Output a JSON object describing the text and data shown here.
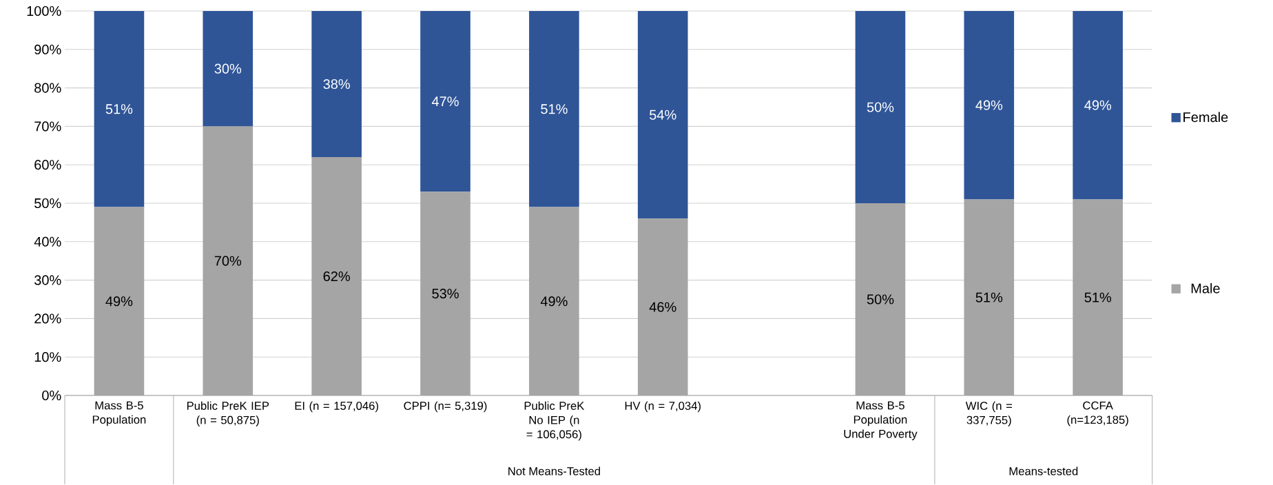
{
  "chart_data": {
    "type": "bar",
    "stacked": true,
    "categories": [
      "Mass B-5 Population",
      "Public PreK IEP (n = 50,875)",
      "EI (n = 157,046)",
      "CPPI (n= 5,319)",
      "Public PreK No IEP (n = 106,056)",
      "HV (n = 7,034)",
      null,
      "Mass B-5 Population Under Poverty",
      "WIC (n = 337,755)",
      "CCFA (n=123,185)"
    ],
    "series": [
      {
        "name": "Male",
        "color": "#a5a5a5",
        "values": [
          49,
          70,
          62,
          53,
          49,
          46,
          null,
          50,
          51,
          51
        ],
        "value_labels": [
          "49%",
          "70%",
          "62%",
          "53%",
          "49%",
          "46%",
          null,
          "50%",
          "51%",
          "51%"
        ]
      },
      {
        "name": "Female",
        "color": "#2f5597",
        "values": [
          51,
          30,
          38,
          47,
          51,
          54,
          null,
          50,
          49,
          49
        ],
        "value_labels": [
          "51%",
          "30%",
          "38%",
          "47%",
          "51%",
          "54%",
          null,
          "50%",
          "49%",
          "49%"
        ]
      }
    ],
    "ylim": [
      0,
      100
    ],
    "yticks": [
      {
        "value": 0,
        "label": "0%"
      },
      {
        "value": 10,
        "label": "10%"
      },
      {
        "value": 20,
        "label": "20%"
      },
      {
        "value": 30,
        "label": "30%"
      },
      {
        "value": 40,
        "label": "40%"
      },
      {
        "value": 50,
        "label": "50%"
      },
      {
        "value": 60,
        "label": "60%"
      },
      {
        "value": 70,
        "label": "70%"
      },
      {
        "value": 80,
        "label": "80%"
      },
      {
        "value": 90,
        "label": "90%"
      },
      {
        "value": 100,
        "label": "100%"
      }
    ],
    "grid": "y",
    "legend": "right",
    "annotations": [
      "Not Means-Tested",
      "Means-tested"
    ]
  }
}
